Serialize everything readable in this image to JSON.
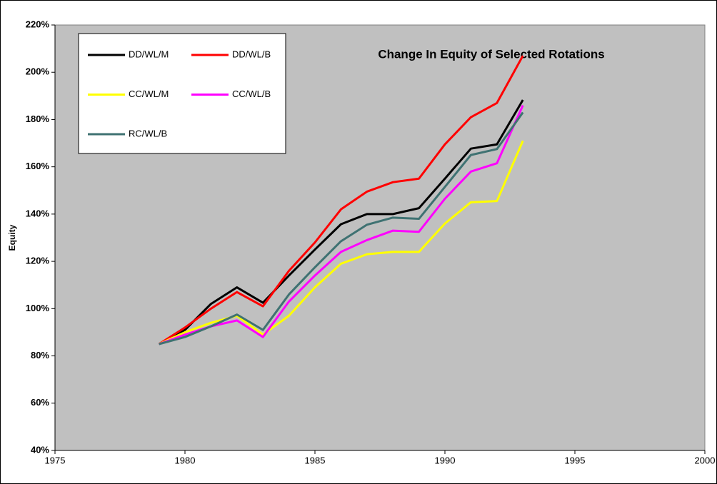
{
  "chart_data": {
    "type": "line",
    "title": "Change In Equity of Selected Rotations",
    "y_label": "Equity",
    "x": [
      1979,
      1980,
      1981,
      1982,
      1983,
      1984,
      1985,
      1986,
      1987,
      1988,
      1989,
      1990,
      1991,
      1992,
      1993
    ],
    "series": [
      {
        "name": "DD/WL/M",
        "color": "#000000",
        "values": [
          85,
          91,
          102,
          109,
          102.5,
          114,
          125,
          135.7,
          140,
          140,
          142.5,
          155,
          167.7,
          169.5,
          188.3
        ]
      },
      {
        "name": "DD/WL/B",
        "color": "#ff0000",
        "values": [
          85,
          92,
          100,
          107,
          101,
          116,
          128,
          142,
          149.5,
          153.5,
          155,
          169.5,
          181,
          187,
          207
        ]
      },
      {
        "name": "CC/WL/M",
        "color": "#ffff00",
        "values": [
          85,
          90,
          94,
          97,
          89,
          97,
          109,
          119,
          123,
          124,
          124,
          136,
          145,
          145.5,
          171
        ]
      },
      {
        "name": "CC/WL/B",
        "color": "#ff00ff",
        "values": [
          85,
          89,
          92.5,
          95,
          88,
          103,
          114,
          124,
          129,
          133,
          132.5,
          146.5,
          158,
          161.5,
          186
        ]
      },
      {
        "name": "RC/WL/B",
        "color": "#3f7272",
        "values": [
          85,
          88,
          92.5,
          97.5,
          91,
          106,
          117.5,
          128.5,
          135.5,
          138.5,
          138,
          151.5,
          165,
          167.5,
          183
        ]
      }
    ],
    "xlim": [
      1975,
      2000
    ],
    "xticks": [
      1975,
      1980,
      1985,
      1990,
      1995,
      2000
    ],
    "ylim": [
      40,
      220
    ],
    "yticks": [
      {
        "value": 40,
        "label": "40%"
      },
      {
        "value": 60,
        "label": "60%"
      },
      {
        "value": 80,
        "label": "80%"
      },
      {
        "value": 100,
        "label": "100%"
      },
      {
        "value": 120,
        "label": "120%"
      },
      {
        "value": 140,
        "label": "140%"
      },
      {
        "value": 160,
        "label": "160%"
      },
      {
        "value": 180,
        "label": "180%"
      },
      {
        "value": 200,
        "label": "200%"
      },
      {
        "value": 220,
        "label": "220%"
      }
    ],
    "legend": "upper left",
    "grid": false
  }
}
